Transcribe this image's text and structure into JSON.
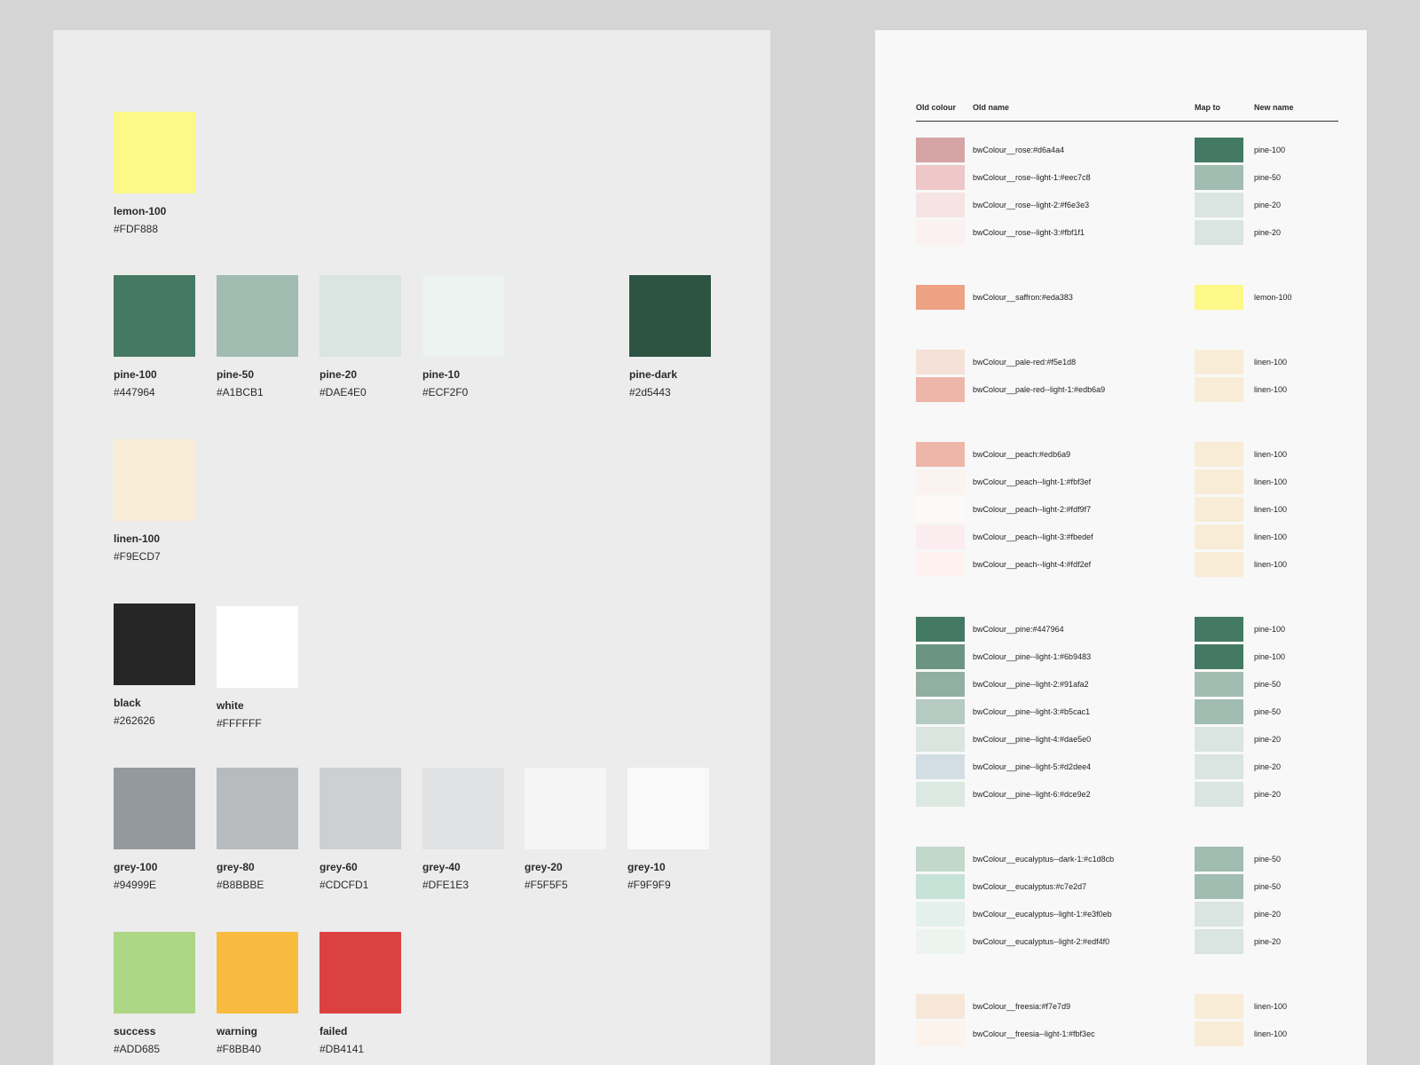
{
  "palette": {
    "swatches": [
      {
        "name": "lemon-100",
        "hex": "#FDF888",
        "color": "#FDF888"
      },
      {
        "name": "pine-100",
        "hex": "#447964",
        "color": "#447964"
      },
      {
        "name": "pine-50",
        "hex": "#A1BCB1",
        "color": "#A1BCB1"
      },
      {
        "name": "pine-20",
        "hex": "#DAE4E0",
        "color": "#DAE4E0"
      },
      {
        "name": "pine-10",
        "hex": "#ECF2F0",
        "color": "#ECF2F0"
      },
      {
        "name": "pine-dark",
        "hex": "#2d5443",
        "color": "#2d5443"
      },
      {
        "name": "linen-100",
        "hex": "#F9ECD7",
        "color": "#F9ECD7"
      },
      {
        "name": "black",
        "hex": "#262626",
        "color": "#262626"
      },
      {
        "name": "white",
        "hex": "#FFFFFF",
        "color": "#FFFFFF"
      },
      {
        "name": "grey-100",
        "hex": "#94999E",
        "color": "#94999E"
      },
      {
        "name": "grey-80",
        "hex": "#B8BBBE",
        "color": "#B8BBBE"
      },
      {
        "name": "grey-60",
        "hex": "#CDCFD1",
        "color": "#CDCFD1"
      },
      {
        "name": "grey-40",
        "hex": "#DFE1E3",
        "color": "#DFE1E3"
      },
      {
        "name": "grey-20",
        "hex": "#F5F5F5",
        "color": "#F5F5F5"
      },
      {
        "name": "grey-10",
        "hex": "#F9F9F9",
        "color": "#F9F9F9"
      },
      {
        "name": "success",
        "hex": "#ADD685",
        "color": "#ADD685"
      },
      {
        "name": "warning",
        "hex": "#F8BB40",
        "color": "#F8BB40"
      },
      {
        "name": "failed",
        "hex": "#DB4141",
        "color": "#DB4141"
      }
    ]
  },
  "mapping": {
    "headers": {
      "old_colour": "Old colour",
      "old_name": "Old name",
      "map_to": "Map to",
      "new_name": "New name"
    },
    "rows": [
      {
        "old_color": "#d6a4a4",
        "old_name": "bwColour__rose:#d6a4a4",
        "new_color": "#447964",
        "new_name": "pine-100"
      },
      {
        "old_color": "#eec7c8",
        "old_name": "bwColour__rose--light-1:#eec7c8",
        "new_color": "#A1BCB1",
        "new_name": "pine-50"
      },
      {
        "old_color": "#f6e3e3",
        "old_name": "bwColour__rose--light-2:#f6e3e3",
        "new_color": "#DAE4E0",
        "new_name": "pine-20"
      },
      {
        "old_color": "#fbf1f1",
        "old_name": "bwColour__rose--light-3:#fbf1f1",
        "new_color": "#DAE4E0",
        "new_name": "pine-20"
      },
      {
        "old_color": "#eda383",
        "old_name": "bwColour__saffron:#eda383",
        "new_color": "#FDF888",
        "new_name": "lemon-100"
      },
      {
        "old_color": "#f5e1d8",
        "old_name": "bwColour__pale-red:#f5e1d8",
        "new_color": "#F9ECD7",
        "new_name": "linen-100"
      },
      {
        "old_color": "#edb6a9",
        "old_name": "bwColour__pale-red--light-1:#edb6a9",
        "new_color": "#F9ECD7",
        "new_name": "linen-100"
      },
      {
        "old_color": "#edb6a9",
        "old_name": "bwColour__peach:#edb6a9",
        "new_color": "#F9ECD7",
        "new_name": "linen-100"
      },
      {
        "old_color": "#fbf3ef",
        "old_name": "bwColour__peach--light-1:#fbf3ef",
        "new_color": "#F9ECD7",
        "new_name": "linen-100"
      },
      {
        "old_color": "#fdf9f7",
        "old_name": "bwColour__peach--light-2:#fdf9f7",
        "new_color": "#F9ECD7",
        "new_name": "linen-100"
      },
      {
        "old_color": "#fbedef",
        "old_name": "bwColour__peach--light-3:#fbedef",
        "new_color": "#F9ECD7",
        "new_name": "linen-100"
      },
      {
        "old_color": "#fdf2ef",
        "old_name": "bwColour__peach--light-4:#fdf2ef",
        "new_color": "#F9ECD7",
        "new_name": "linen-100"
      },
      {
        "old_color": "#447964",
        "old_name": "bwColour__pine:#447964",
        "new_color": "#447964",
        "new_name": "pine-100"
      },
      {
        "old_color": "#6b9483",
        "old_name": "bwColour__pine--light-1:#6b9483",
        "new_color": "#447964",
        "new_name": "pine-100"
      },
      {
        "old_color": "#91afa2",
        "old_name": "bwColour__pine--light-2:#91afa2",
        "new_color": "#A1BCB1",
        "new_name": "pine-50"
      },
      {
        "old_color": "#b5cac1",
        "old_name": "bwColour__pine--light-3:#b5cac1",
        "new_color": "#A1BCB1",
        "new_name": "pine-50"
      },
      {
        "old_color": "#dae5e0",
        "old_name": "bwColour__pine--light-4:#dae5e0",
        "new_color": "#DAE4E0",
        "new_name": "pine-20"
      },
      {
        "old_color": "#d2dee4",
        "old_name": "bwColour__pine--light-5:#d2dee4",
        "new_color": "#DAE4E0",
        "new_name": "pine-20"
      },
      {
        "old_color": "#dce9e2",
        "old_name": "bwColour__pine--light-6:#dce9e2",
        "new_color": "#DAE4E0",
        "new_name": "pine-20"
      },
      {
        "old_color": "#c1d8cb",
        "old_name": "bwColour__eucalyptus--dark-1:#c1d8cb",
        "new_color": "#A1BCB1",
        "new_name": "pine-50"
      },
      {
        "old_color": "#c7e2d7",
        "old_name": "bwColour__eucalyptus:#c7e2d7",
        "new_color": "#A1BCB1",
        "new_name": "pine-50"
      },
      {
        "old_color": "#e3f0eb",
        "old_name": "bwColour__eucalyptus--light-1:#e3f0eb",
        "new_color": "#DAE4E0",
        "new_name": "pine-20"
      },
      {
        "old_color": "#edf4f0",
        "old_name": "bwColour__eucalyptus--light-2:#edf4f0",
        "new_color": "#DAE4E0",
        "new_name": "pine-20"
      },
      {
        "old_color": "#f7e7d9",
        "old_name": "bwColour__freesia:#f7e7d9",
        "new_color": "#F9ECD7",
        "new_name": "linen-100"
      },
      {
        "old_color": "#fbf3ec",
        "old_name": "bwColour__freesia--light-1:#fbf3ec",
        "new_color": "#F9ECD7",
        "new_name": "linen-100"
      }
    ]
  }
}
